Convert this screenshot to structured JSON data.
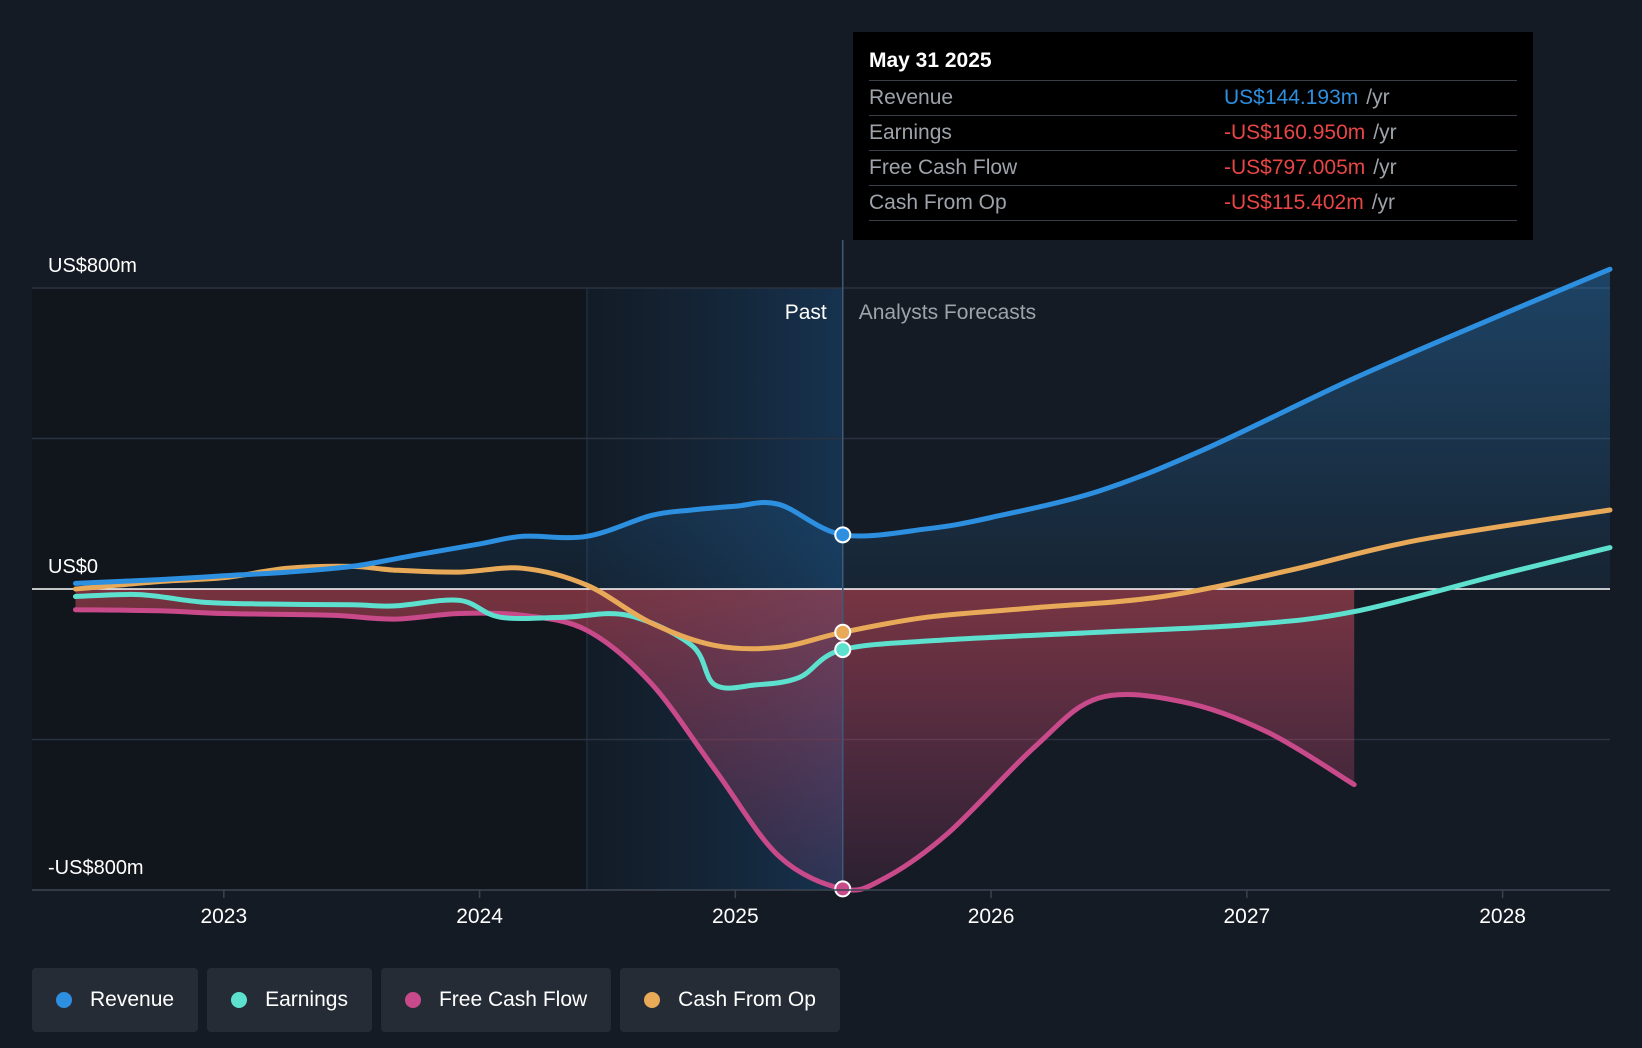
{
  "chart_data": {
    "type": "line",
    "title": "",
    "y_axis": {
      "max_label": "US$800m",
      "zero_label": "US$0",
      "min_label": "-US$800m",
      "ylim": [
        -800,
        800
      ]
    },
    "x_axis": {
      "ticks": [
        "2023",
        "2024",
        "2025",
        "2026",
        "2027",
        "2028"
      ],
      "xlim": [
        2022.25,
        2028.42
      ]
    },
    "regions": {
      "past_label": "Past",
      "forecast_label": "Analysts Forecasts",
      "divider_x": 2025.42,
      "shade_start_x": 2024.42
    },
    "series": [
      {
        "name": "Revenue",
        "color": "#2d8fe0",
        "marker_x": 2025.42,
        "points": [
          [
            2022.42,
            15
          ],
          [
            2022.75,
            25
          ],
          [
            2023.0,
            35
          ],
          [
            2023.25,
            45
          ],
          [
            2023.5,
            60
          ],
          [
            2023.75,
            90
          ],
          [
            2024.0,
            120
          ],
          [
            2024.17,
            140
          ],
          [
            2024.42,
            140
          ],
          [
            2024.67,
            195
          ],
          [
            2024.83,
            210
          ],
          [
            2025.0,
            220
          ],
          [
            2025.17,
            225
          ],
          [
            2025.42,
            144
          ],
          [
            2025.75,
            160
          ],
          [
            2026.0,
            190
          ],
          [
            2026.42,
            260
          ],
          [
            2026.83,
            370
          ],
          [
            2027.42,
            560
          ],
          [
            2028.0,
            730
          ],
          [
            2028.42,
            850
          ]
        ]
      },
      {
        "name": "Earnings",
        "color": "#5ee0cf",
        "marker_x": 2025.42,
        "points": [
          [
            2022.42,
            -20
          ],
          [
            2022.67,
            -15
          ],
          [
            2022.92,
            -35
          ],
          [
            2023.17,
            -40
          ],
          [
            2023.5,
            -42
          ],
          [
            2023.67,
            -45
          ],
          [
            2023.92,
            -30
          ],
          [
            2024.08,
            -75
          ],
          [
            2024.33,
            -75
          ],
          [
            2024.58,
            -70
          ],
          [
            2024.83,
            -150
          ],
          [
            2024.92,
            -255
          ],
          [
            2025.08,
            -255
          ],
          [
            2025.25,
            -235
          ],
          [
            2025.42,
            -161
          ],
          [
            2025.83,
            -135
          ],
          [
            2026.42,
            -115
          ],
          [
            2027.0,
            -95
          ],
          [
            2027.42,
            -60
          ],
          [
            2028.0,
            40
          ],
          [
            2028.42,
            110
          ]
        ]
      },
      {
        "name": "Free Cash Flow",
        "color": "#c94a8a",
        "marker_x": 2025.42,
        "points": [
          [
            2022.42,
            -55
          ],
          [
            2022.75,
            -58
          ],
          [
            2023.0,
            -65
          ],
          [
            2023.42,
            -70
          ],
          [
            2023.67,
            -80
          ],
          [
            2023.92,
            -65
          ],
          [
            2024.17,
            -70
          ],
          [
            2024.42,
            -110
          ],
          [
            2024.67,
            -250
          ],
          [
            2024.92,
            -480
          ],
          [
            2025.17,
            -710
          ],
          [
            2025.42,
            -797
          ],
          [
            2025.58,
            -770
          ],
          [
            2025.83,
            -650
          ],
          [
            2026.17,
            -420
          ],
          [
            2026.42,
            -290
          ],
          [
            2026.75,
            -300
          ],
          [
            2027.08,
            -380
          ],
          [
            2027.42,
            -520
          ]
        ]
      },
      {
        "name": "Cash From Op",
        "color": "#e8a958",
        "marker_x": 2025.42,
        "points": [
          [
            2022.42,
            0
          ],
          [
            2022.75,
            20
          ],
          [
            2023.0,
            30
          ],
          [
            2023.25,
            55
          ],
          [
            2023.5,
            60
          ],
          [
            2023.67,
            50
          ],
          [
            2023.92,
            45
          ],
          [
            2024.17,
            55
          ],
          [
            2024.42,
            10
          ],
          [
            2024.67,
            -90
          ],
          [
            2024.92,
            -150
          ],
          [
            2025.17,
            -155
          ],
          [
            2025.42,
            -115
          ],
          [
            2025.75,
            -75
          ],
          [
            2026.17,
            -50
          ],
          [
            2026.67,
            -20
          ],
          [
            2027.17,
            50
          ],
          [
            2027.67,
            130
          ],
          [
            2028.42,
            210
          ]
        ]
      }
    ]
  },
  "tooltip": {
    "date": "May 31 2025",
    "rows": [
      {
        "label": "Revenue",
        "value": "US$144.193m",
        "unit": "/yr",
        "color": "#2d8fe0"
      },
      {
        "label": "Earnings",
        "value": "-US$160.950m",
        "unit": "/yr",
        "color": "#e84545"
      },
      {
        "label": "Free Cash Flow",
        "value": "-US$797.005m",
        "unit": "/yr",
        "color": "#e84545"
      },
      {
        "label": "Cash From Op",
        "value": "-US$115.402m",
        "unit": "/yr",
        "color": "#e84545"
      }
    ]
  },
  "legend": [
    {
      "label": "Revenue",
      "color": "#2d8fe0"
    },
    {
      "label": "Earnings",
      "color": "#5ee0cf"
    },
    {
      "label": "Free Cash Flow",
      "color": "#c94a8a"
    },
    {
      "label": "Cash From Op",
      "color": "#e8a958"
    }
  ]
}
